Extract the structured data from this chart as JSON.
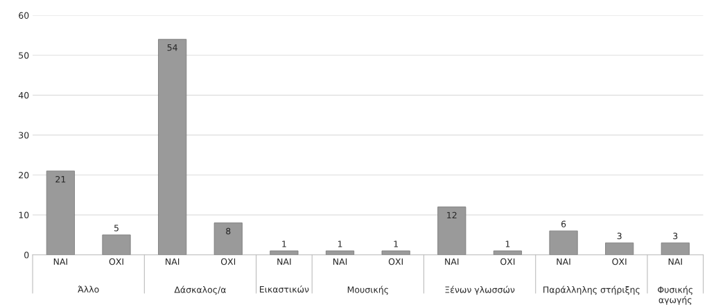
{
  "chart_data": {
    "type": "bar",
    "categories": [
      "ΝΑΙ",
      "ΟΧΙ",
      "ΝΑΙ",
      "ΟΧΙ",
      "ΝΑΙ",
      "ΝΑΙ",
      "ΟΧΙ",
      "ΝΑΙ",
      "ΟΧΙ",
      "ΝΑΙ",
      "ΟΧΙ",
      "ΝΑΙ"
    ],
    "values": [
      21,
      5,
      54,
      8,
      1,
      1,
      1,
      12,
      1,
      6,
      3,
      3
    ],
    "color": "#9a9a9a",
    "annotations": [
      "Άλλο",
      "Δάσκαλος/α",
      "Εικαστικών",
      "Μουσικής",
      "Ξένων γλωσσών",
      "Παράλληλης στήριξης",
      "Φυσικής αγωγής"
    ],
    "ylim": [
      0,
      60
    ],
    "yticks": [
      0,
      10,
      20,
      30,
      40,
      50,
      60
    ],
    "grid": "y",
    "data_labels": true
  }
}
